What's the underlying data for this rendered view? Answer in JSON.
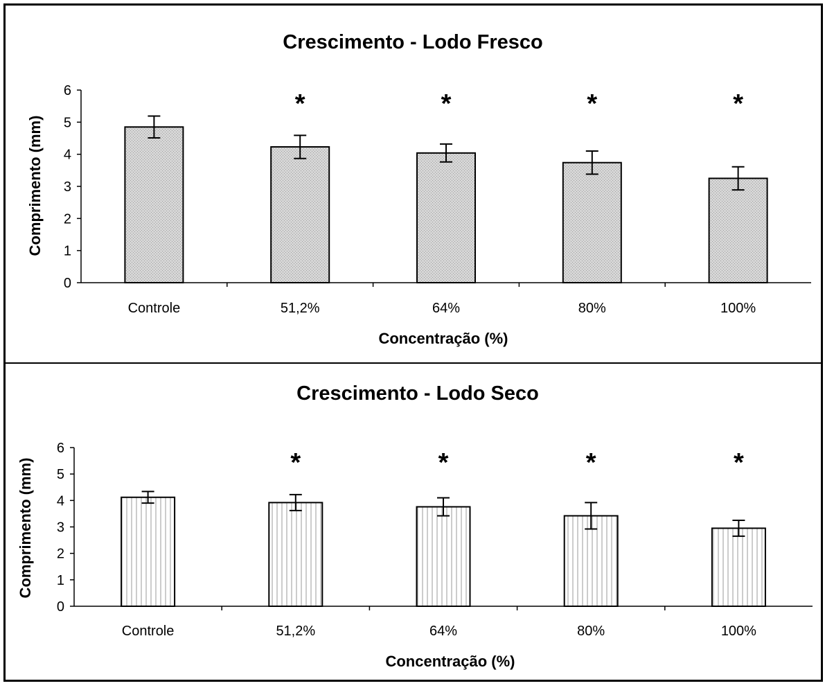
{
  "chart_data": [
    {
      "type": "bar",
      "title": "Crescimento - Lodo Fresco",
      "xlabel": "Concentração (%)",
      "ylabel": "Comprimento (mm)",
      "ylim": [
        0,
        6
      ],
      "yticks": [
        "0",
        "1",
        "2",
        "3",
        "4",
        "5",
        "6"
      ],
      "categories": [
        "Controle",
        "51,2%",
        "64%",
        "80%",
        "100%"
      ],
      "values": [
        4.85,
        4.23,
        4.04,
        3.74,
        3.25
      ],
      "error": [
        0.34,
        0.36,
        0.28,
        0.36,
        0.36
      ],
      "significance": [
        "",
        "*",
        "*",
        "*",
        "*"
      ],
      "bar_pattern": "crosshatch",
      "grid": false,
      "legend": "none"
    },
    {
      "type": "bar",
      "title": "Crescimento - Lodo Seco",
      "xlabel": "Concentração (%)",
      "ylabel": "Comprimento (mm)",
      "ylim": [
        0,
        6
      ],
      "yticks": [
        "0",
        "1",
        "2",
        "3",
        "4",
        "5",
        "6"
      ],
      "categories": [
        "Controle",
        "51,2%",
        "64%",
        "80%",
        "100%"
      ],
      "values": [
        4.12,
        3.92,
        3.76,
        3.42,
        2.95
      ],
      "error": [
        0.22,
        0.3,
        0.34,
        0.5,
        0.3
      ],
      "significance": [
        "",
        "*",
        "*",
        "*",
        "*"
      ],
      "bar_pattern": "vertical-lines",
      "grid": false,
      "legend": "none"
    }
  ],
  "colors": {
    "frame": "#000000",
    "bar_stroke": "#000000",
    "fresco_fill": "#d6d6d6",
    "seco_fill": "#ffffff",
    "seco_lines": "#9a9a9a"
  }
}
